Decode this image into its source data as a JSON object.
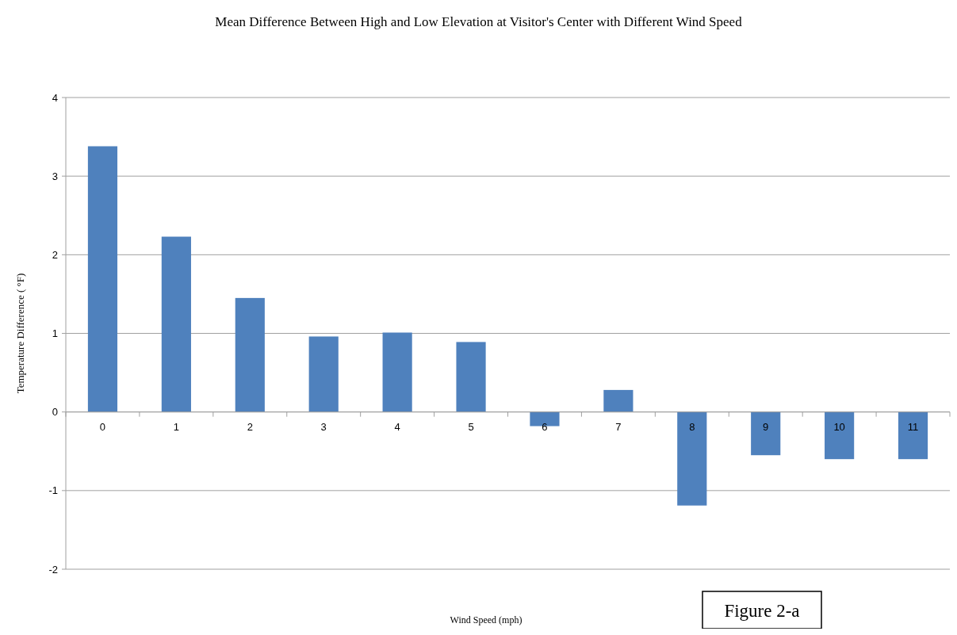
{
  "chart_data": {
    "type": "bar",
    "title": "Mean Difference Between High and Low Elevation at Visitor's Center with Different Wind Speed",
    "xlabel": "Wind Speed (mph)",
    "ylabel": "Temperature Difference ( °F)",
    "categories": [
      "0",
      "1",
      "2",
      "3",
      "4",
      "5",
      "6",
      "7",
      "8",
      "9",
      "10",
      "11"
    ],
    "values": [
      3.38,
      2.23,
      1.45,
      0.96,
      1.01,
      0.89,
      -0.18,
      0.28,
      -1.19,
      -0.55,
      -0.6,
      -0.6
    ],
    "color": "#4f81bd",
    "ylim": [
      -2,
      4
    ],
    "yticks": [
      -2,
      -1,
      0,
      1,
      2,
      3,
      4
    ],
    "grid": "y",
    "annotations": [
      "Figure 2-a"
    ]
  }
}
